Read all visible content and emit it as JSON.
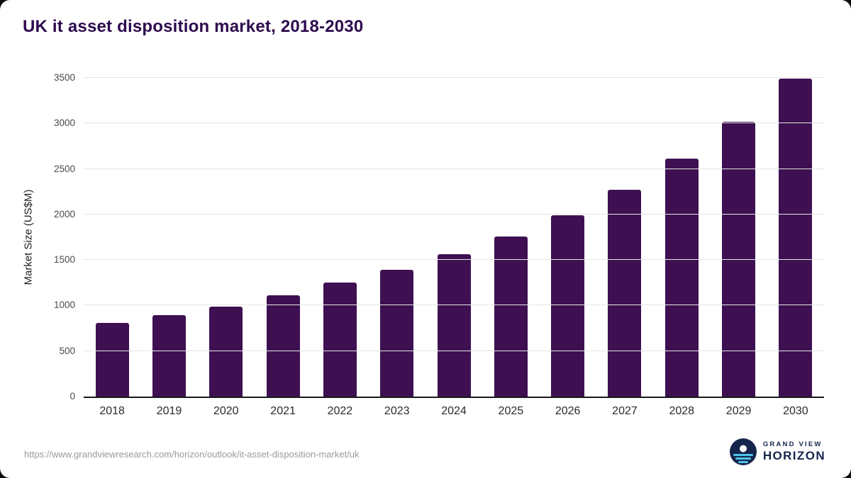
{
  "title": "UK it asset disposition market, 2018-2030",
  "source_url": "https://www.grandviewresearch.com/horizon/outlook/it-asset-disposition-market/uk",
  "logo": {
    "line1": "GRAND VIEW",
    "line2": "HORIZON"
  },
  "colors": {
    "bar": "#3e1051",
    "title": "#2d0a4e",
    "grid": "#e6e6e6",
    "axis": "#1a1a1a",
    "tick_text": "#4a4a4a",
    "source_text": "#9a9a9a",
    "logo_navy": "#16254c",
    "logo_blue": "#4ec3e8"
  },
  "chart_data": {
    "type": "bar",
    "title": "UK it asset disposition market, 2018-2030",
    "categories": [
      "2018",
      "2019",
      "2020",
      "2021",
      "2022",
      "2023",
      "2024",
      "2025",
      "2026",
      "2027",
      "2028",
      "2029",
      "2030"
    ],
    "values": [
      810,
      895,
      990,
      1115,
      1250,
      1390,
      1560,
      1760,
      1990,
      2270,
      2615,
      3015,
      3490
    ],
    "xlabel": "",
    "ylabel": "Market Size (US$M)",
    "ylim": [
      0,
      3500
    ],
    "yticks": [
      0,
      500,
      1000,
      1500,
      2000,
      2500,
      3000,
      3500
    ],
    "grid": "horizontal",
    "legend": "none",
    "bar_color": "#3e1051"
  }
}
